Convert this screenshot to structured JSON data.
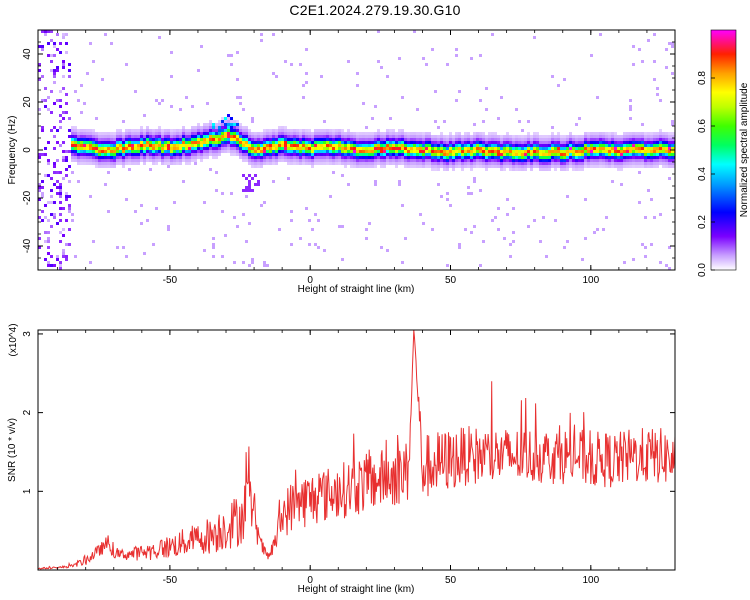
{
  "title": "C2E1.2024.279.19.30.G10",
  "chart_data": [
    {
      "type": "heatmap",
      "xlabel": "Height of straight line (km)",
      "ylabel": "Frequency (Hz)",
      "xlim": [
        -97,
        130
      ],
      "ylim": [
        -50,
        50
      ],
      "xticks": [
        -50,
        0,
        50,
        100
      ],
      "yticks": [
        -40,
        -20,
        0,
        20,
        40
      ],
      "colorbar": {
        "label": "Normalized spectral amplitude",
        "range": [
          0.0,
          1.0
        ],
        "ticks": [
          "0.0",
          "0.2",
          "0.4",
          "0.6",
          "0.8"
        ],
        "colormap": [
          "#ffffff",
          "#7a00ff",
          "#0000ff",
          "#00ffff",
          "#00ff00",
          "#ffff00",
          "#ff8000",
          "#ff0000",
          "#ff00ff"
        ]
      },
      "band_center_hz": [
        [
          -88,
          2
        ],
        [
          -80,
          1
        ],
        [
          -70,
          0
        ],
        [
          -60,
          2
        ],
        [
          -50,
          1
        ],
        [
          -40,
          3
        ],
        [
          -33,
          5
        ],
        [
          -28,
          6
        ],
        [
          -25,
          4
        ],
        [
          -20,
          0
        ],
        [
          -10,
          2
        ],
        [
          0,
          1
        ],
        [
          10,
          1
        ],
        [
          20,
          0
        ],
        [
          30,
          1
        ],
        [
          40,
          0
        ],
        [
          50,
          -1
        ],
        [
          60,
          0
        ],
        [
          70,
          -1
        ],
        [
          80,
          -1
        ],
        [
          90,
          -1
        ],
        [
          100,
          0
        ],
        [
          110,
          0
        ],
        [
          120,
          0
        ],
        [
          128,
          0
        ]
      ],
      "noise_region_x": [
        -97,
        -85
      ]
    },
    {
      "type": "line",
      "xlabel": "Height of straight line (km)",
      "ylabel": "SNR (10 * v/v)",
      "y_multiplier": "(x10^4)",
      "xlim": [
        -97,
        130
      ],
      "ylim": [
        0,
        3.05
      ],
      "xticks": [
        -50,
        0,
        50,
        100
      ],
      "yticks": [
        1,
        2,
        3
      ],
      "color": "#e83030",
      "series": [
        {
          "x": [
            -97,
            -90,
            -85,
            -80,
            -75,
            -72,
            -70,
            -65,
            -60,
            -55,
            -50,
            -45,
            -40,
            -35,
            -30,
            -25,
            -22,
            -20,
            -18,
            -15,
            -12,
            -10,
            -5,
            0,
            5,
            10,
            15,
            20,
            25,
            30,
            35,
            37,
            40,
            45,
            50,
            55,
            60,
            65,
            70,
            75,
            80,
            85,
            90,
            95,
            100,
            105,
            110,
            115,
            120,
            125,
            130
          ],
          "values": [
            0.02,
            0.03,
            0.05,
            0.12,
            0.25,
            0.35,
            0.2,
            0.2,
            0.22,
            0.25,
            0.3,
            0.35,
            0.4,
            0.45,
            0.55,
            0.65,
            0.9,
            0.75,
            0.35,
            0.15,
            0.4,
            0.7,
            0.85,
            0.9,
            0.95,
            1.0,
            1.05,
            1.1,
            1.15,
            1.2,
            1.25,
            3.05,
            1.3,
            1.35,
            1.4,
            1.45,
            1.45,
            1.45,
            1.45,
            1.45,
            1.45,
            1.45,
            1.45,
            1.45,
            1.4,
            1.4,
            1.4,
            1.45,
            1.45,
            1.45,
            1.4
          ],
          "noise_amplitude": [
            0.01,
            0.01,
            0.02,
            0.06,
            0.08,
            0.1,
            0.05,
            0.08,
            0.1,
            0.12,
            0.15,
            0.18,
            0.2,
            0.25,
            0.3,
            0.35,
            0.4,
            0.3,
            0.12,
            0.05,
            0.15,
            0.3,
            0.35,
            0.35,
            0.35,
            0.35,
            0.38,
            0.38,
            0.38,
            0.4,
            0.4,
            0.0,
            0.42,
            0.42,
            0.4,
            0.38,
            0.38,
            0.38,
            0.36,
            0.36,
            0.36,
            0.36,
            0.36,
            0.36,
            0.36,
            0.36,
            0.36,
            0.36,
            0.36,
            0.36,
            0.36
          ]
        }
      ]
    }
  ]
}
